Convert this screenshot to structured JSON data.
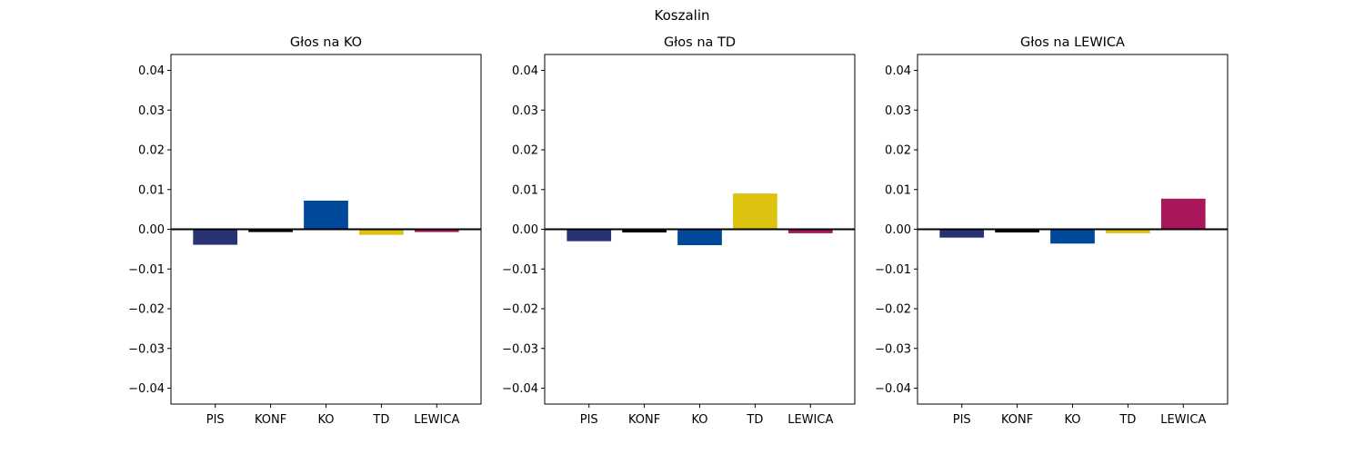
{
  "suptitle": "Koszalin",
  "chart_data": [
    {
      "type": "bar",
      "title": "Głos na KO",
      "xlabel": "",
      "ylabel": "",
      "categories": [
        "PIS",
        "KONF",
        "KO",
        "TD",
        "LEWICA"
      ],
      "values": [
        -0.0039,
        -0.0007,
        0.0072,
        -0.0014,
        -0.0007
      ],
      "colors": [
        "#283374",
        "#000000",
        "#00489a",
        "#dcc30f",
        "#a9165a"
      ],
      "ylim": [
        -0.044,
        0.044
      ],
      "yticks": [
        -0.04,
        -0.03,
        -0.02,
        -0.01,
        0.0,
        0.01,
        0.02,
        0.03,
        0.04
      ],
      "ytick_labels": [
        "−0.04",
        "−0.03",
        "−0.02",
        "−0.01",
        "0.00",
        "0.01",
        "0.02",
        "0.03",
        "0.04"
      ],
      "zero_line": true,
      "grid": false
    },
    {
      "type": "bar",
      "title": "Głos na TD",
      "xlabel": "",
      "ylabel": "",
      "categories": [
        "PIS",
        "KONF",
        "KO",
        "TD",
        "LEWICA"
      ],
      "values": [
        -0.003,
        -0.0008,
        -0.004,
        0.009,
        -0.001
      ],
      "colors": [
        "#283374",
        "#000000",
        "#00489a",
        "#dcc30f",
        "#a9165a"
      ],
      "ylim": [
        -0.044,
        0.044
      ],
      "yticks": [
        -0.04,
        -0.03,
        -0.02,
        -0.01,
        0.0,
        0.01,
        0.02,
        0.03,
        0.04
      ],
      "ytick_labels": [
        "−0.04",
        "−0.03",
        "−0.02",
        "−0.01",
        "0.00",
        "0.01",
        "0.02",
        "0.03",
        "0.04"
      ],
      "zero_line": true,
      "grid": false
    },
    {
      "type": "bar",
      "title": "Głos na LEWICA",
      "xlabel": "",
      "ylabel": "",
      "categories": [
        "PIS",
        "KONF",
        "KO",
        "TD",
        "LEWICA"
      ],
      "values": [
        -0.0021,
        -0.0008,
        -0.0036,
        -0.001,
        0.0077
      ],
      "colors": [
        "#283374",
        "#000000",
        "#00489a",
        "#dcc30f",
        "#a9165a"
      ],
      "ylim": [
        -0.044,
        0.044
      ],
      "yticks": [
        -0.04,
        -0.03,
        -0.02,
        -0.01,
        0.0,
        0.01,
        0.02,
        0.03,
        0.04
      ],
      "ytick_labels": [
        "−0.04",
        "−0.03",
        "−0.02",
        "−0.01",
        "0.00",
        "0.01",
        "0.02",
        "0.03",
        "0.04"
      ],
      "zero_line": true,
      "grid": false
    }
  ]
}
